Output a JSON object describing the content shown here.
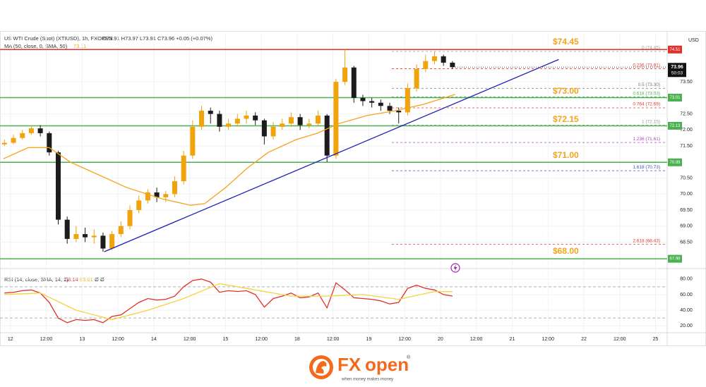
{
  "chart_data": [
    {
      "type": "candlestick",
      "title": "US WTI Crude (Spot) (XTIUSD), 1h, FXOPEN",
      "subtitle": "O73.91 H73.97 L73.91 C73.96 +0.05 (+0.07%)",
      "currency": "USD",
      "xlim": [
        -3.5,
        219.9
      ],
      "ylim": [
        67.85,
        75.0
      ],
      "xticks": [
        {
          "value": 0,
          "label": "12"
        },
        {
          "value": 12,
          "label": "12:00"
        },
        {
          "value": 24,
          "label": "13"
        },
        {
          "value": 36,
          "label": "12:00"
        },
        {
          "value": 48,
          "label": "14"
        },
        {
          "value": 60,
          "label": "12:00"
        },
        {
          "value": 72,
          "label": "15"
        },
        {
          "value": 84,
          "label": "12:00"
        },
        {
          "value": 96,
          "label": "18"
        },
        {
          "value": 108,
          "label": "12:00"
        },
        {
          "value": 120,
          "label": "19"
        },
        {
          "value": 132,
          "label": "12:00"
        },
        {
          "value": 144,
          "label": "20"
        },
        {
          "value": 156,
          "label": "12:00"
        },
        {
          "value": 168,
          "label": "21"
        },
        {
          "value": 180,
          "label": "12:00"
        },
        {
          "value": 192,
          "label": "22"
        },
        {
          "value": 204,
          "label": "12:00"
        },
        {
          "value": 216,
          "label": "25"
        }
      ],
      "yticks": [
        {
          "value": 68.5,
          "label": "68.50"
        },
        {
          "value": 69,
          "label": "69.00"
        },
        {
          "value": 69.5,
          "label": "69.50"
        },
        {
          "value": 70,
          "label": "70.00"
        },
        {
          "value": 70.5,
          "label": "70.50"
        },
        {
          "value": 71.5,
          "label": "71.50"
        },
        {
          "value": 72,
          "label": "72.00"
        },
        {
          "value": 72.5,
          "label": "72.50"
        },
        {
          "value": 73.5,
          "label": "73.50"
        }
      ],
      "up_color": "#f0a30a",
      "down_color": "#1c1c1c",
      "x": [
        -2,
        1,
        4,
        7,
        10,
        13,
        16,
        19,
        22,
        25,
        28,
        31,
        34,
        37,
        40,
        43,
        46,
        49,
        52,
        55,
        58,
        61,
        64,
        67,
        70,
        73,
        76,
        79,
        82,
        85,
        88,
        91,
        94,
        97,
        100,
        103,
        106,
        109,
        112,
        115,
        118,
        121,
        124,
        127,
        130,
        133,
        136,
        139,
        142,
        145,
        148
      ],
      "open": [
        71.55,
        71.6,
        71.75,
        71.9,
        72.05,
        71.9,
        71.3,
        69.2,
        68.6,
        68.75,
        68.65,
        68.7,
        68.3,
        68.75,
        69.0,
        69.5,
        69.8,
        70.05,
        69.9,
        70.0,
        70.4,
        71.2,
        72.1,
        72.6,
        72.5,
        72.1,
        72.2,
        72.35,
        72.45,
        72.3,
        71.8,
        72.1,
        72.2,
        72.4,
        72.15,
        72.2,
        72.45,
        71.2,
        73.5,
        73.95,
        73.0,
        72.9,
        72.85,
        72.75,
        72.6,
        72.55,
        73.3,
        73.9,
        74.15,
        74.3,
        74.1
      ],
      "high": [
        71.7,
        71.85,
        72.0,
        72.15,
        72.15,
        71.95,
        71.35,
        69.3,
        69.0,
        68.95,
        68.9,
        68.8,
        68.85,
        69.15,
        69.65,
        69.95,
        70.15,
        70.2,
        70.1,
        70.55,
        71.35,
        72.3,
        72.75,
        72.7,
        72.6,
        72.35,
        72.5,
        72.6,
        72.55,
        72.35,
        72.25,
        72.35,
        72.55,
        72.5,
        72.35,
        72.6,
        72.5,
        73.6,
        74.5,
        74.0,
        73.1,
        73.0,
        72.95,
        72.85,
        72.7,
        73.45,
        74.05,
        74.35,
        74.45,
        74.35,
        74.15
      ],
      "low": [
        71.5,
        71.55,
        71.7,
        71.85,
        71.8,
        71.2,
        69.05,
        68.45,
        68.5,
        68.5,
        68.45,
        68.2,
        68.25,
        68.65,
        68.9,
        69.4,
        69.7,
        69.75,
        69.75,
        69.9,
        70.3,
        71.1,
        72.0,
        72.2,
        71.95,
        72.0,
        72.1,
        72.2,
        72.15,
        71.55,
        71.7,
        72.0,
        72.1,
        72.0,
        72.05,
        72.1,
        71.0,
        71.1,
        73.4,
        72.85,
        72.75,
        72.7,
        72.6,
        72.5,
        72.2,
        72.45,
        73.2,
        73.8,
        74.05,
        74.0,
        73.9
      ],
      "close": [
        71.6,
        71.75,
        71.9,
        72.05,
        71.9,
        71.3,
        69.2,
        68.6,
        68.75,
        68.65,
        68.7,
        68.3,
        68.75,
        69.0,
        69.5,
        69.8,
        70.05,
        69.9,
        70.0,
        70.4,
        71.2,
        72.1,
        72.6,
        72.5,
        72.1,
        72.2,
        72.35,
        72.45,
        72.3,
        71.8,
        72.1,
        72.2,
        72.4,
        72.15,
        72.2,
        72.45,
        71.2,
        73.5,
        73.95,
        73.0,
        72.9,
        72.85,
        72.75,
        72.6,
        72.55,
        73.3,
        73.9,
        74.15,
        74.3,
        74.1,
        73.96
      ],
      "series": [
        {
          "name": "MA (50, close, 0, SMA, 50)",
          "color": "#f7a21b",
          "x": [
            -2.4,
            5.9,
            13,
            20,
            29.5,
            39,
            50.8,
            60.3,
            65,
            72,
            79.2,
            86.3,
            95.7,
            102.8,
            110,
            119.4,
            128.8,
            138.3,
            148.9
          ],
          "values": [
            71.1,
            71.45,
            71.45,
            71.0,
            70.6,
            70.2,
            69.85,
            69.65,
            69.7,
            70.2,
            70.8,
            71.3,
            71.7,
            71.9,
            72.2,
            72.45,
            72.6,
            72.8,
            73.11
          ]
        },
        {
          "color": "#1f1fb8",
          "x": [
            31.4,
            183.6
          ],
          "values": [
            68.2,
            74.2
          ]
        }
      ],
      "hlines": [
        {
          "value": 74.51,
          "color": "#e0312b"
        },
        {
          "value": 73.01,
          "color": "#4caf50"
        },
        {
          "value": 72.13,
          "color": "#4caf50"
        },
        {
          "value": 70.99,
          "color": "#4caf50"
        },
        {
          "value": 67.98,
          "color": "#4caf50"
        }
      ],
      "annotations": [
        "$74.45",
        "$73.00",
        "$72.15",
        "$71.00",
        "$68.00"
      ],
      "fib_levels": [
        {
          "label": "0 (74.45)",
          "value": 74.45,
          "color": "#9e9e9e"
        },
        {
          "label": "0.236 (73.91)",
          "value": 73.91,
          "color": "#e53935"
        },
        {
          "label": "0.5 (73.30)",
          "value": 73.3,
          "color": "#757575"
        },
        {
          "label": "0.618 (73.03)",
          "value": 73.03,
          "color": "#4caf50"
        },
        {
          "label": "0.764 (72.69)",
          "value": 72.69,
          "color": "#e53935"
        },
        {
          "label": "1 (72.15)",
          "value": 72.15,
          "color": "#9e9e9e"
        },
        {
          "label": "1.236 (71.61)",
          "value": 71.61,
          "color": "#ab47bc"
        },
        {
          "label": "1.618 (70.73)",
          "value": 70.73,
          "color": "#3f51b5"
        },
        {
          "label": "2.618 (68.43)",
          "value": 68.43,
          "color": "#e53935"
        }
      ],
      "last": {
        "value": 73.96,
        "countdown": "50:03"
      }
    },
    {
      "type": "line",
      "title": "RSI (14, close, SMA, 14, 2)",
      "extra": "Ø Ø",
      "ylim": [
        13,
        87
      ],
      "yticks": [
        {
          "value": 20,
          "label": "20.00"
        },
        {
          "value": 40,
          "label": "40.00"
        },
        {
          "value": 60,
          "label": "60.00"
        },
        {
          "value": 80,
          "label": "80.00"
        }
      ],
      "bands": [
        70,
        30
      ],
      "series": [
        {
          "color": "#e0312b",
          "x": [
            -2,
            1,
            4,
            7,
            10,
            13,
            16,
            19,
            22,
            25,
            28,
            31,
            34,
            37,
            40,
            43,
            46,
            49,
            52,
            55,
            58,
            61,
            64,
            67,
            70,
            73,
            76,
            79,
            82,
            85,
            88,
            91,
            94,
            97,
            100,
            103,
            106,
            109,
            112,
            115,
            118,
            121,
            124,
            127,
            130,
            133,
            136,
            139,
            142,
            145,
            148
          ],
          "values": [
            62,
            63,
            65,
            66,
            62,
            50,
            30,
            24,
            28,
            27,
            28,
            24,
            32,
            34,
            42,
            50,
            55,
            53,
            54,
            58,
            70,
            78,
            80,
            76,
            63,
            65,
            64,
            65,
            60,
            44,
            55,
            58,
            62,
            56,
            57,
            62,
            43,
            75,
            66,
            56,
            55,
            54,
            52,
            48,
            50,
            68,
            72,
            68,
            66,
            60,
            58.14
          ]
        },
        {
          "color": "#f5d33b",
          "x": [
            -2,
            10,
            22,
            34,
            46,
            58,
            70,
            82,
            94,
            106,
            118,
            130,
            142,
            148
          ],
          "values": [
            60,
            62,
            40,
            28,
            40,
            55,
            74,
            66,
            58,
            58,
            60,
            54,
            64,
            63.61
          ]
        }
      ]
    }
  ],
  "branding": {
    "name_a": "FX",
    "name_b": "open",
    "mark": "®",
    "tagline": "when money makes money"
  }
}
